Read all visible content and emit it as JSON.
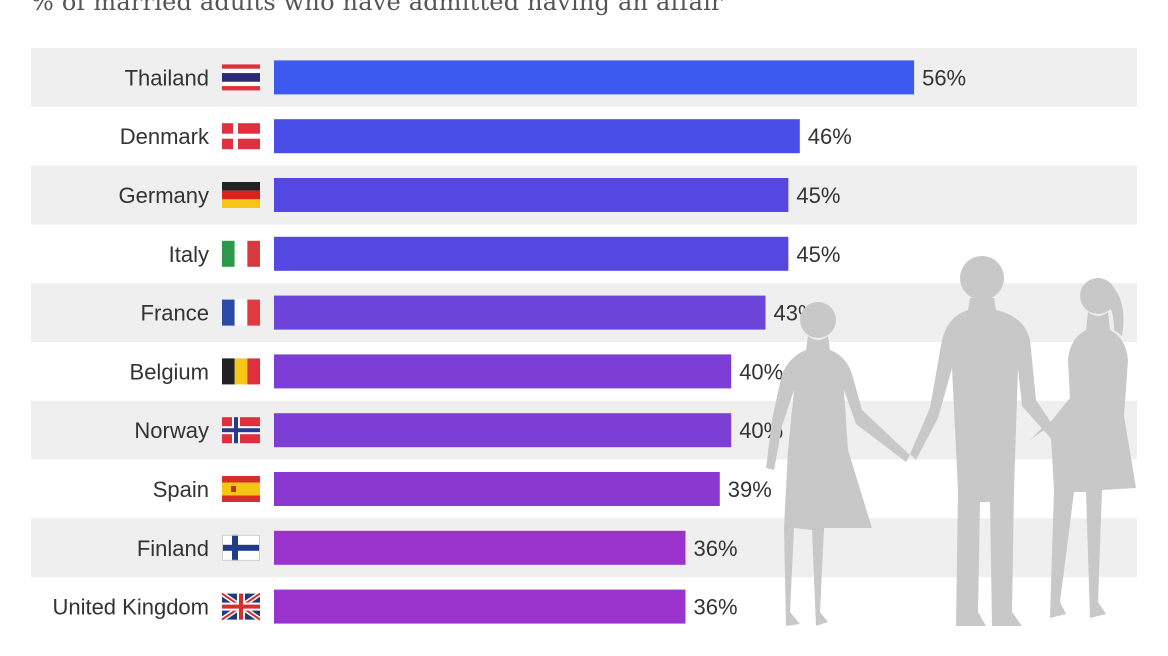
{
  "chart_data": {
    "type": "bar",
    "orientation": "horizontal",
    "subtitle": "% of married adults who have admitted having an affair",
    "categories": [
      "Thailand",
      "Denmark",
      "Germany",
      "Italy",
      "France",
      "Belgium",
      "Norway",
      "Spain",
      "Finland",
      "United Kingdom"
    ],
    "values": [
      56,
      46,
      45,
      45,
      43,
      40,
      40,
      39,
      36,
      36
    ],
    "value_labels": [
      "56%",
      "46%",
      "45%",
      "45%",
      "43%",
      "40%",
      "40%",
      "39%",
      "36%",
      "36%"
    ],
    "flag_icons": [
      "thailand-flag-icon",
      "denmark-flag-icon",
      "germany-flag-icon",
      "italy-flag-icon",
      "france-flag-icon",
      "belgium-flag-icon",
      "norway-flag-icon",
      "spain-flag-icon",
      "finland-flag-icon",
      "united-kingdom-flag-icon"
    ],
    "bar_colors": [
      "#3d5af0",
      "#4a4ee8",
      "#5548e2",
      "#5548e2",
      "#6c44da",
      "#7c3ed5",
      "#7c3ed5",
      "#8a38d0",
      "#9a33cc",
      "#9a33cc"
    ],
    "row_band_color": "#efefef",
    "xlim": [
      0,
      56
    ],
    "grid": false,
    "legend": "none"
  },
  "decoration": {
    "icon": "couple-silhouette-icon",
    "color": "#c8c8c8"
  }
}
